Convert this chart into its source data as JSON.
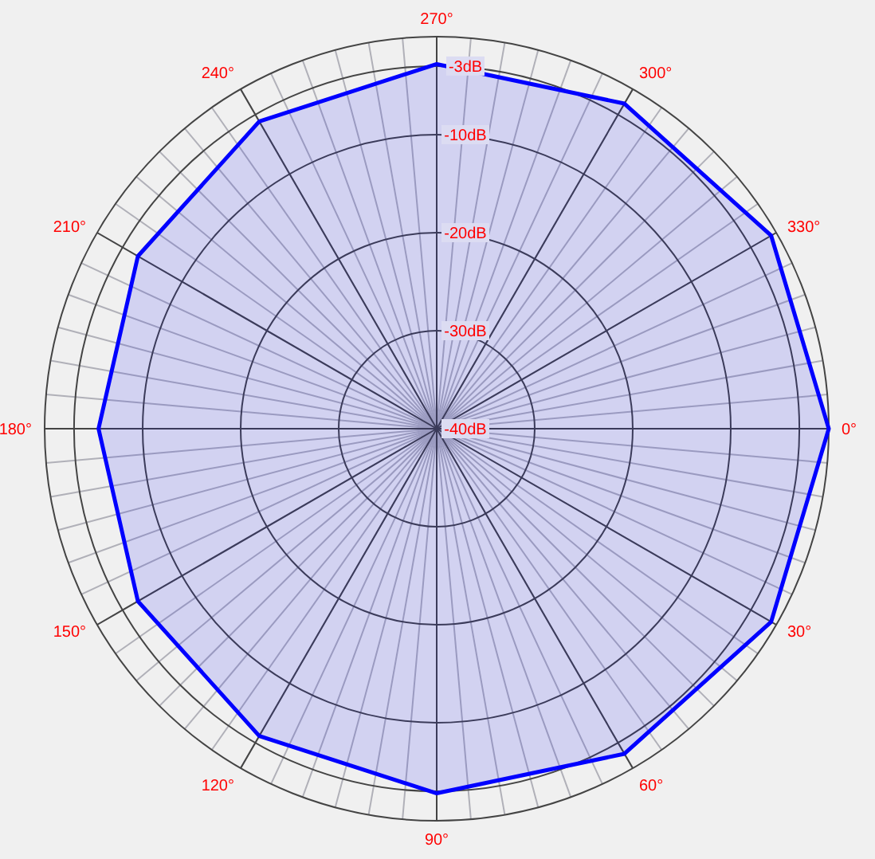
{
  "chart_data": {
    "type": "radar",
    "categories": [
      "270°",
      "300°",
      "330°",
      "0°",
      "30°",
      "60°",
      "90°",
      "120°",
      "150°",
      "180°",
      "210°",
      "240°"
    ],
    "series": [
      {
        "color": "#0000ff",
        "values": [
          -2.8,
          -1.7,
          -0.6,
          0,
          -0.6,
          -1.7,
          -2.8,
          -3.8,
          -4.8,
          -5.5,
          -4.8,
          -3.8
        ]
      }
    ],
    "ylim": [
      -40,
      0
    ],
    "yticks": [
      {
        "value": -40,
        "label": "-40dB"
      },
      {
        "value": -30,
        "label": "-30dB"
      },
      {
        "value": -20,
        "label": "-20dB"
      },
      {
        "value": -10,
        "label": "-10dB"
      },
      {
        "value": -3,
        "label": "-3dB"
      }
    ],
    "grid": true
  }
}
